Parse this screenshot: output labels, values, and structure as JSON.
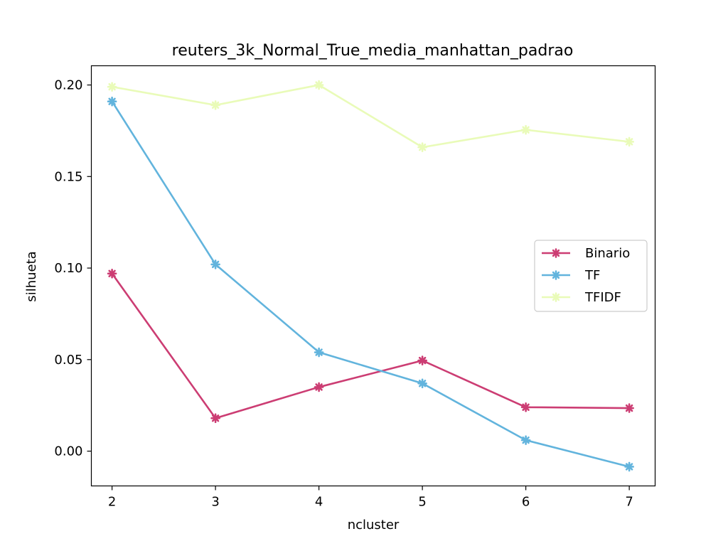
{
  "chart_data": {
    "type": "line",
    "title": "reuters_3k_Normal_True_media_manhattan_padrao",
    "xlabel": "ncluster",
    "ylabel": "silhueta",
    "x": [
      2,
      3,
      4,
      5,
      6,
      7
    ],
    "xlim": [
      1.8,
      7.25
    ],
    "ylim": [
      -0.019,
      0.2105
    ],
    "yticks": [
      0.0,
      0.05,
      0.1,
      0.15,
      0.2
    ],
    "ytick_labels": [
      "0.00",
      "0.05",
      "0.10",
      "0.15",
      "0.20"
    ],
    "xticks": [
      2,
      3,
      4,
      5,
      6,
      7
    ],
    "xtick_labels": [
      "2",
      "3",
      "4",
      "5",
      "6",
      "7"
    ],
    "grid": false,
    "legend_position": "center-right",
    "series": [
      {
        "name": "Binario",
        "color": "#cc3d73",
        "values": [
          0.097,
          0.018,
          0.035,
          0.0495,
          0.024,
          0.0235
        ]
      },
      {
        "name": "TF",
        "color": "#62b4dd",
        "values": [
          0.191,
          0.102,
          0.054,
          0.037,
          0.006,
          -0.0085
        ]
      },
      {
        "name": "TFIDF",
        "color": "#e9fbb8",
        "values": [
          0.199,
          0.189,
          0.2,
          0.166,
          0.1755,
          0.169
        ]
      }
    ]
  }
}
